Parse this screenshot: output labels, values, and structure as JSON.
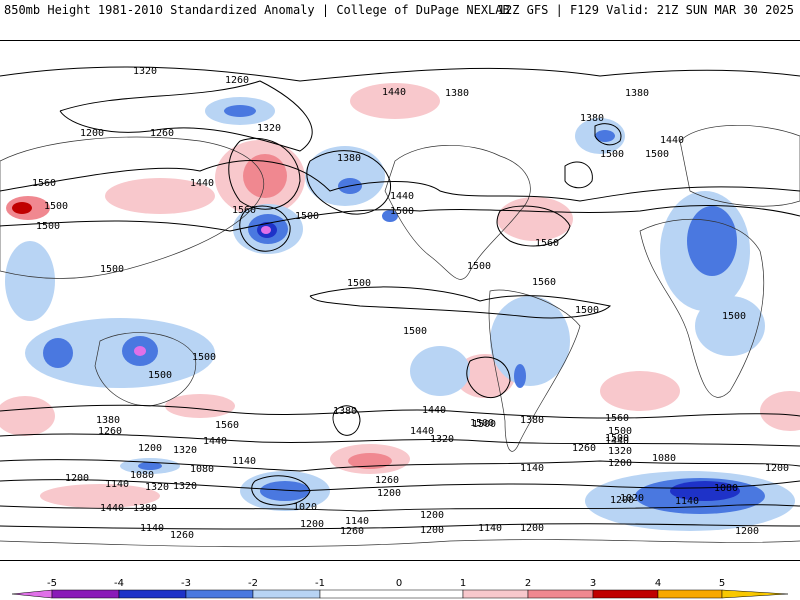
{
  "header": {
    "left": "850mb Height 1981-2010 Standardized Anomaly | College of DuPage NEXLAB",
    "right": "12Z GFS | F129 Valid: 21Z SUN MAR 30 2025"
  },
  "colors": {
    "neg5": "#e070e8",
    "neg4": "#8a1ab8",
    "neg3": "#1e32c8",
    "neg2": "#4a78e0",
    "neg1": "#b8d4f4",
    "zero": "#ffffff",
    "pos1": "#f8c8cc",
    "pos2": "#f08890",
    "pos3": "#e04850",
    "pos4": "#c00000",
    "pos5": "#f8a800",
    "contour": "#000000",
    "coast": "#333333"
  },
  "contour_labels": [
    "1320",
    "1260",
    "1200",
    "1260",
    "1440",
    "1380",
    "1380",
    "1320",
    "1440",
    "1500",
    "1560",
    "1440",
    "1500",
    "1380",
    "1440",
    "1500",
    "1500",
    "1560",
    "1500",
    "1380",
    "1560",
    "1500",
    "1500",
    "1500",
    "1500",
    "1500",
    "1500",
    "1500",
    "1500",
    "1500",
    "1500",
    "1440",
    "1380",
    "1260",
    "1200",
    "1320",
    "1440",
    "1560",
    "1380",
    "1440",
    "1320",
    "1500",
    "1380",
    "1260",
    "1200",
    "1080",
    "1140",
    "1320",
    "1200",
    "1140",
    "1080",
    "1140",
    "1260",
    "1200",
    "1020",
    "1200",
    "1140",
    "1260",
    "1200",
    "1140",
    "1200",
    "1320",
    "1440",
    "1380",
    "1260",
    "1560",
    "1500",
    "1560",
    "1500",
    "1440",
    "1320",
    "1200",
    "1080",
    "1140",
    "1080",
    "1200",
    "1020",
    "1200",
    "1140",
    "1200"
  ],
  "colorbar": {
    "ticks": [
      "-5",
      "-4",
      "-3",
      "-2",
      "-1",
      "0",
      "1",
      "2",
      "3",
      "4",
      "5"
    ]
  }
}
